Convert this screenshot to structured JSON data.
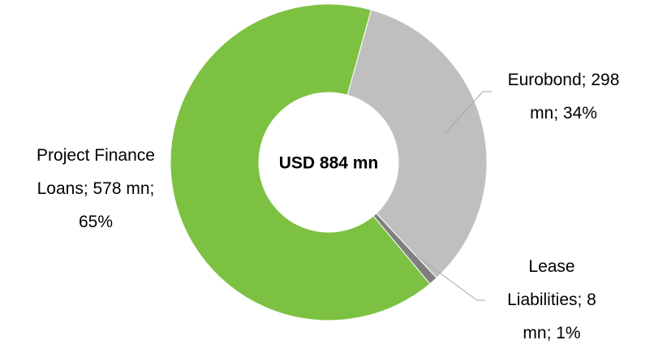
{
  "chart_data": {
    "type": "donut",
    "center_label": "USD 884 mn",
    "values": [
      298,
      8,
      578
    ],
    "value_labels": [
      "Eurobond; 298 mn; 34%",
      "Lease Liabilities; 8 mn; 1%",
      "Project Finance Loans; 578 mn; 65%"
    ],
    "colors": [
      "#bfbfbf",
      "#7f7f7f",
      "#7dc142"
    ]
  }
}
